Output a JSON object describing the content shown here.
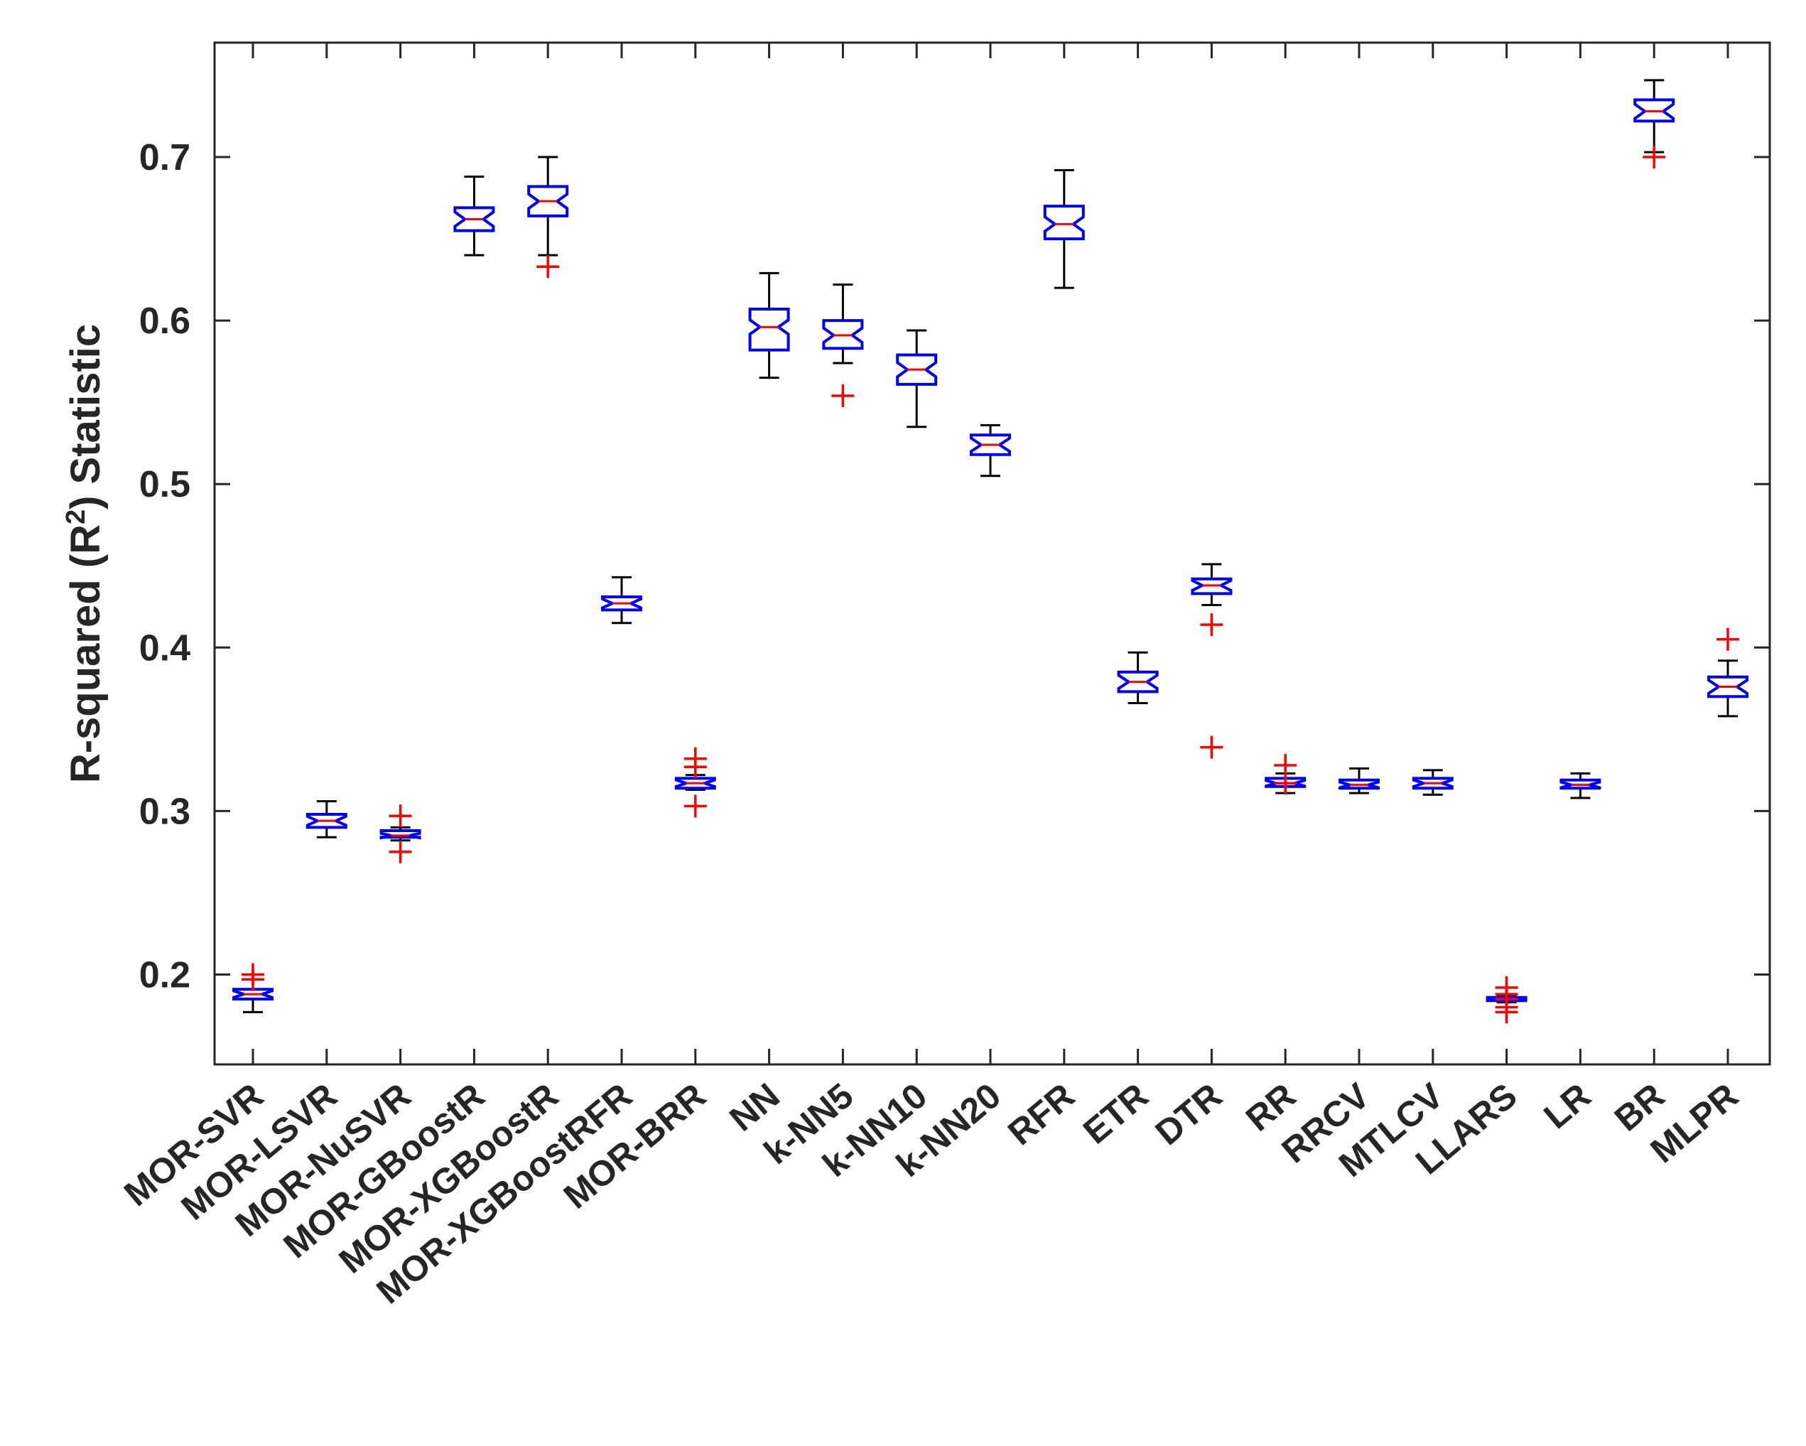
{
  "chart_data": {
    "type": "boxplot",
    "ylabel_prefix": "R-squared (R",
    "ylabel_sup": "2",
    "ylabel_suffix": ") Statistic",
    "xlabel": "",
    "ylim": [
      0.145,
      0.77
    ],
    "yticks": [
      0.2,
      0.3,
      0.4,
      0.5,
      0.6,
      0.7
    ],
    "ytick_labels": [
      "0.2",
      "0.3",
      "0.4",
      "0.5",
      "0.6",
      "0.7"
    ],
    "grid": false,
    "colors": {
      "box": "#0000ff",
      "median": "#ff0000",
      "whisker": "#000000",
      "outlier": "#ff0000",
      "axis": "#262626"
    },
    "categories": [
      "MOR-SVR",
      "MOR-LSVR",
      "MOR-NuSVR",
      "MOR-GBoostR",
      "MOR-XGBoostR",
      "MOR-XGBoostRFR",
      "MOR-BRR",
      "NN",
      "k-NN5",
      "k-NN10",
      "k-NN20",
      "RFR",
      "ETR",
      "DTR",
      "RR",
      "RRCV",
      "MTLCV",
      "LLARS",
      "LR",
      "BR",
      "MLPR"
    ],
    "boxes": [
      {
        "whislo": 0.177,
        "q1": 0.185,
        "med": 0.188,
        "q3": 0.191,
        "whishi": 0.197,
        "outliers": [
          0.2,
          0.197
        ]
      },
      {
        "whislo": 0.284,
        "q1": 0.29,
        "med": 0.294,
        "q3": 0.298,
        "whishi": 0.306,
        "outliers": []
      },
      {
        "whislo": 0.282,
        "q1": 0.284,
        "med": 0.285,
        "q3": 0.288,
        "whishi": 0.29,
        "outliers": [
          0.297,
          0.275
        ]
      },
      {
        "whislo": 0.64,
        "q1": 0.655,
        "med": 0.662,
        "q3": 0.669,
        "whishi": 0.688,
        "outliers": []
      },
      {
        "whislo": 0.64,
        "q1": 0.664,
        "med": 0.673,
        "q3": 0.682,
        "whishi": 0.7,
        "outliers": [
          0.633
        ]
      },
      {
        "whislo": 0.415,
        "q1": 0.423,
        "med": 0.427,
        "q3": 0.431,
        "whishi": 0.443,
        "outliers": []
      },
      {
        "whislo": 0.313,
        "q1": 0.314,
        "med": 0.317,
        "q3": 0.32,
        "whishi": 0.322,
        "outliers": [
          0.332,
          0.327,
          0.303
        ]
      },
      {
        "whislo": 0.565,
        "q1": 0.582,
        "med": 0.596,
        "q3": 0.607,
        "whishi": 0.629,
        "outliers": []
      },
      {
        "whislo": 0.574,
        "q1": 0.583,
        "med": 0.591,
        "q3": 0.6,
        "whishi": 0.622,
        "outliers": [
          0.554
        ]
      },
      {
        "whislo": 0.535,
        "q1": 0.561,
        "med": 0.57,
        "q3": 0.579,
        "whishi": 0.594,
        "outliers": []
      },
      {
        "whislo": 0.505,
        "q1": 0.518,
        "med": 0.524,
        "q3": 0.53,
        "whishi": 0.536,
        "outliers": []
      },
      {
        "whislo": 0.62,
        "q1": 0.65,
        "med": 0.659,
        "q3": 0.67,
        "whishi": 0.692,
        "outliers": []
      },
      {
        "whislo": 0.366,
        "q1": 0.373,
        "med": 0.379,
        "q3": 0.385,
        "whishi": 0.397,
        "outliers": []
      },
      {
        "whislo": 0.426,
        "q1": 0.433,
        "med": 0.438,
        "q3": 0.442,
        "whishi": 0.451,
        "outliers": [
          0.414,
          0.339
        ]
      },
      {
        "whislo": 0.311,
        "q1": 0.315,
        "med": 0.317,
        "q3": 0.32,
        "whishi": 0.323,
        "outliers": [
          0.328,
          0.317
        ]
      },
      {
        "whislo": 0.311,
        "q1": 0.314,
        "med": 0.316,
        "q3": 0.319,
        "whishi": 0.326,
        "outliers": []
      },
      {
        "whislo": 0.31,
        "q1": 0.314,
        "med": 0.317,
        "q3": 0.32,
        "whishi": 0.325,
        "outliers": []
      },
      {
        "whislo": 0.183,
        "q1": 0.184,
        "med": 0.185,
        "q3": 0.186,
        "whishi": 0.187,
        "outliers": [
          0.192,
          0.188,
          0.185,
          0.18,
          0.177
        ]
      },
      {
        "whislo": 0.308,
        "q1": 0.314,
        "med": 0.316,
        "q3": 0.319,
        "whishi": 0.323,
        "outliers": []
      },
      {
        "whislo": 0.703,
        "q1": 0.722,
        "med": 0.728,
        "q3": 0.735,
        "whishi": 0.747,
        "outliers": [
          0.7
        ]
      },
      {
        "whislo": 0.358,
        "q1": 0.37,
        "med": 0.376,
        "q3": 0.382,
        "whishi": 0.392,
        "outliers": [
          0.405
        ]
      }
    ]
  }
}
